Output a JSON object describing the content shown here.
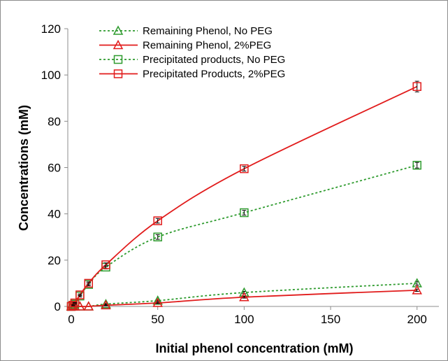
{
  "chart_data": {
    "type": "line",
    "xlabel": "Initial phenol concentration (mM)",
    "ylabel": "Concentrations (mM)",
    "xlim": [
      0,
      210
    ],
    "ylim": [
      0,
      120
    ],
    "x_ticks": [
      0,
      50,
      100,
      150,
      200
    ],
    "y_ticks": [
      0,
      20,
      40,
      60,
      80,
      100,
      120
    ],
    "grid": false,
    "legend_position": "top-left",
    "series": [
      {
        "name": "Remaining Phenol, No PEG",
        "color": "#2e9b2e",
        "line_style": "dotted",
        "marker": "triangle",
        "x": [
          0,
          1,
          2,
          5,
          10,
          20,
          50,
          100,
          200
        ],
        "y": [
          0,
          0,
          0,
          0,
          0,
          1,
          2.5,
          6,
          10
        ],
        "error": [
          0,
          0,
          0,
          0,
          0,
          0.3,
          0.3,
          0.5,
          0.8
        ]
      },
      {
        "name": "Remaining Phenol, 2%PEG",
        "color": "#e11b1b",
        "line_style": "solid",
        "marker": "triangle",
        "x": [
          0,
          1,
          2,
          5,
          10,
          20,
          50,
          100,
          200
        ],
        "y": [
          0,
          0,
          0,
          0,
          0,
          0.5,
          1.5,
          4,
          7
        ],
        "error": [
          0,
          0,
          0,
          0,
          0,
          0.2,
          0.3,
          0.4,
          0.5
        ]
      },
      {
        "name": "Precipitated products, No PEG",
        "color": "#2e9b2e",
        "line_style": "dotted",
        "marker": "square",
        "x": [
          0,
          1,
          2,
          5,
          10,
          20,
          50,
          100,
          200
        ],
        "y": [
          0,
          0.5,
          1,
          4.5,
          9.5,
          17,
          30,
          40.5,
          61
        ],
        "error": [
          0,
          0.2,
          0.2,
          0.4,
          0.6,
          0.8,
          1.0,
          1.0,
          1.2
        ]
      },
      {
        "name": "Precipitated Products, 2%PEG",
        "color": "#e11b1b",
        "line_style": "solid",
        "marker": "square",
        "x": [
          0,
          1,
          2,
          5,
          10,
          20,
          50,
          100,
          200
        ],
        "y": [
          0,
          0.5,
          1.5,
          5,
          10,
          18,
          37,
          59.5,
          95
        ],
        "error": [
          0,
          0.2,
          0.2,
          0.4,
          0.6,
          0.8,
          1.0,
          1.0,
          2.3
        ]
      }
    ]
  }
}
